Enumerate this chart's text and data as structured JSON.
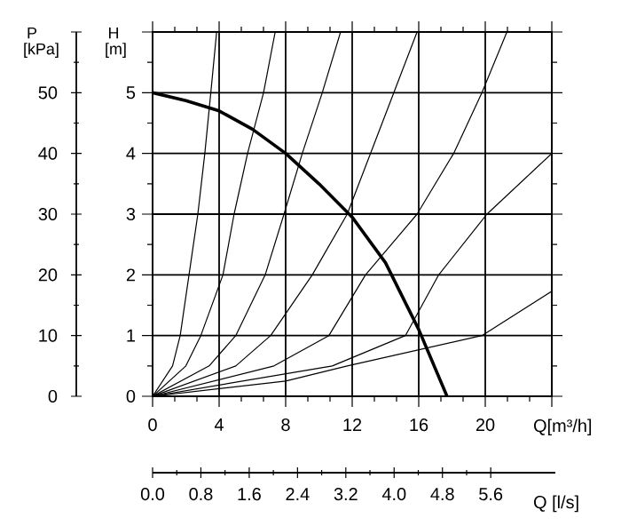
{
  "chart_data": {
    "type": "line",
    "xlabel": "Q[m³/h]",
    "ylabel": "H [m]",
    "y2label": "P [kPa]",
    "x2label": "Q [l/s]",
    "xlim": [
      0,
      24
    ],
    "xticks": [
      0,
      4,
      8,
      12,
      16,
      20,
      {
        "value": 24,
        "label": null
      }
    ],
    "ylim": [
      0,
      6
    ],
    "yticks": [
      0,
      1,
      2,
      3,
      4,
      5,
      {
        "value": 6,
        "label": null
      }
    ],
    "y2lim": [
      0,
      60
    ],
    "y2ticks": [
      0,
      10,
      20,
      30,
      40,
      50,
      {
        "value": 60,
        "label": null
      }
    ],
    "x2lim": [
      0,
      6.67
    ],
    "x2ticks": [
      {
        "value": 0,
        "label": "0.0"
      },
      0.8,
      1.6,
      2.4,
      3.2,
      {
        "value": 4.0,
        "label": "4.0"
      },
      4.8,
      5.6
    ],
    "grid": true,
    "marker": "none",
    "line_style": "solid",
    "series": [
      {
        "color": "#000000",
        "x": [
          0,
          2,
          4,
          6,
          8,
          10,
          12,
          14,
          16,
          17.7
        ],
        "values": [
          5,
          4.87,
          4.7,
          4.4,
          4.0,
          3.5,
          2.95,
          2.2,
          1.1,
          0
        ]
      },
      {
        "color": "#000000",
        "x": [
          0,
          1.2,
          1.66,
          2.19,
          2.72,
          3.14,
          3.5,
          3.85
        ],
        "values": [
          0,
          0.5,
          1,
          2,
          3,
          4,
          5,
          6
        ]
      },
      {
        "color": "#000000",
        "x": [
          0,
          2.0,
          2.9,
          4.23,
          4.9,
          5.71,
          6.67,
          7.37
        ],
        "values": [
          0,
          0.5,
          1,
          2,
          3,
          4,
          5,
          6
        ]
      },
      {
        "color": "#000000",
        "x": [
          0,
          3.4,
          5.0,
          6.77,
          7.9,
          9.0,
          10.2,
          11.3
        ],
        "values": [
          0,
          0.5,
          1,
          2,
          3,
          4,
          5,
          6
        ]
      },
      {
        "color": "#000000",
        "x": [
          0,
          5.0,
          7.1,
          9.6,
          11.7,
          13.1,
          14.5,
          15.9
        ],
        "values": [
          0,
          0.5,
          1,
          2,
          3,
          4,
          5,
          6
        ]
      },
      {
        "color": "#000000",
        "x": [
          0,
          7.3,
          10.6,
          12.8,
          15.9,
          18.1,
          19.8,
          21.3
        ],
        "values": [
          0,
          0.5,
          1,
          2,
          3,
          4,
          5,
          6
        ]
      },
      {
        "color": "#000000",
        "x": [
          0,
          10.8,
          15.2,
          17.2,
          20.1,
          24
        ],
        "values": [
          0,
          0.5,
          1,
          2,
          3,
          4
        ]
      },
      {
        "color": "#000000",
        "x": [
          0,
          8,
          11.7,
          19.8,
          24
        ],
        "values": [
          0,
          0.25,
          0.5,
          1,
          1.73
        ]
      }
    ]
  }
}
